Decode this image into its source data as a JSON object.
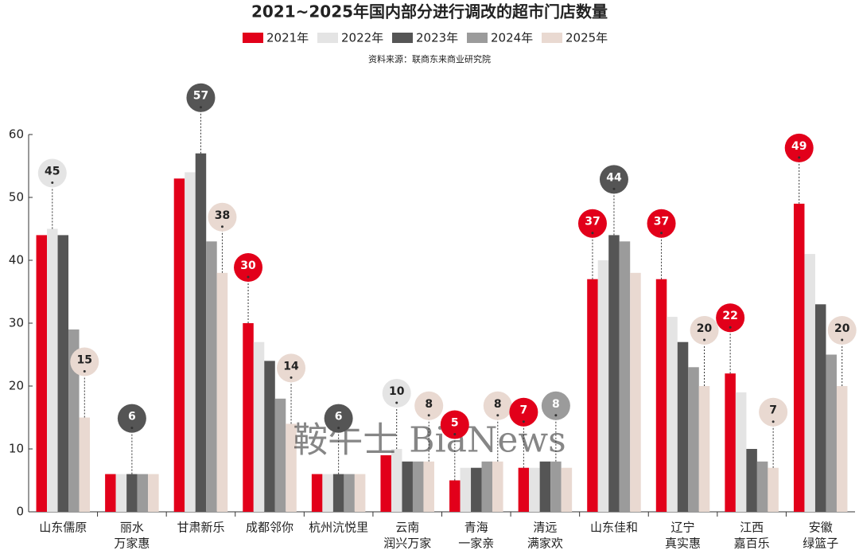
{
  "chart_data": {
    "type": "bar",
    "title": "2021~2025年国内部分进行调改的超市门店数量",
    "source": "资料来源：联商东来商业研究院",
    "watermark": "鞍牛士 BiaNews",
    "categories": [
      [
        "山东儒原"
      ],
      [
        "丽水",
        "万家惠"
      ],
      [
        "甘肃新乐"
      ],
      [
        "成都邻你"
      ],
      [
        "杭州沆悦里"
      ],
      [
        "云南",
        "润兴万家"
      ],
      [
        "青海",
        "一家亲"
      ],
      [
        "清远",
        "满家欢"
      ],
      [
        "山东佳和"
      ],
      [
        "辽宁",
        "真实惠"
      ],
      [
        "江西",
        "嘉百乐"
      ],
      [
        "安徽",
        "绿篮子"
      ]
    ],
    "series": [
      {
        "name": "2021年",
        "color": "#e2001a",
        "values": [
          44,
          6,
          53,
          30,
          6,
          9,
          5,
          7,
          37,
          37,
          22,
          49
        ],
        "labeled": [
          3,
          6,
          7,
          8,
          9,
          10,
          11
        ]
      },
      {
        "name": "2022年",
        "color": "#e4e4e4",
        "values": [
          45,
          6,
          54,
          27,
          6,
          10,
          7,
          7,
          40,
          31,
          19,
          41
        ],
        "labeled": [
          0,
          5
        ]
      },
      {
        "name": "2023年",
        "color": "#555555",
        "values": [
          44,
          6,
          57,
          24,
          6,
          8,
          7,
          8,
          44,
          27,
          10,
          33
        ],
        "labeled": [
          1,
          2,
          4,
          8
        ]
      },
      {
        "name": "2024年",
        "color": "#9b9b9b",
        "values": [
          29,
          6,
          43,
          18,
          6,
          8,
          8,
          8,
          43,
          23,
          8,
          25
        ],
        "labeled": [
          7
        ]
      },
      {
        "name": "2025年",
        "color": "#e9d9d1",
        "values": [
          15,
          6,
          38,
          14,
          6,
          8,
          8,
          7,
          38,
          20,
          7,
          20
        ],
        "labeled": [
          0,
          2,
          3,
          5,
          6,
          9,
          10,
          11
        ]
      }
    ],
    "ylim": [
      0,
      60
    ],
    "yticks": [
      0,
      10,
      20,
      30,
      40,
      50,
      60
    ],
    "grid": false
  }
}
